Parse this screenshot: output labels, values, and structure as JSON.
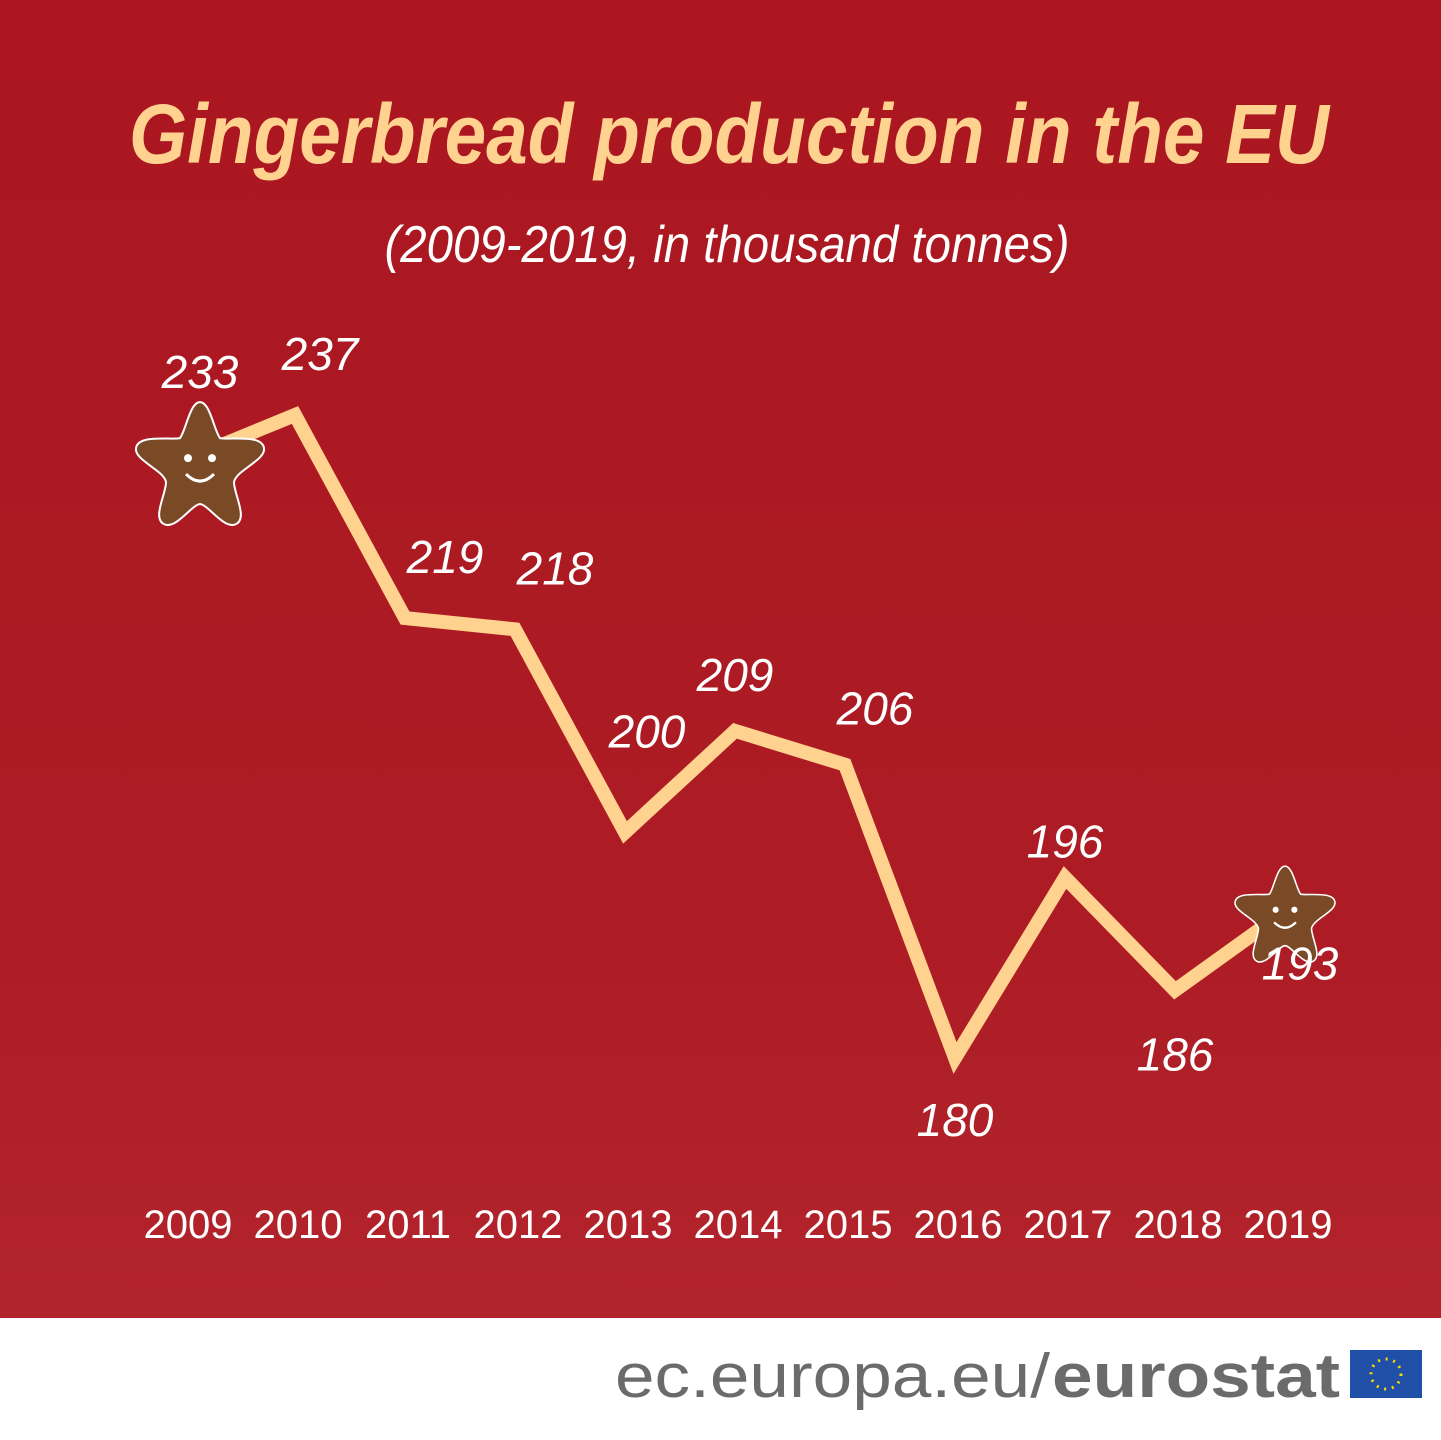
{
  "chart_data": {
    "type": "line",
    "title": "Gingerbread production in the EU",
    "subtitle": "(2009-2019, in thousand tonnes)",
    "categories": [
      "2009",
      "2010",
      "2011",
      "2012",
      "2013",
      "2014",
      "2015",
      "2016",
      "2017",
      "2018",
      "2019"
    ],
    "values": [
      233,
      237,
      219,
      218,
      200,
      209,
      206,
      180,
      196,
      186,
      193
    ],
    "color": "#ffd28f"
  },
  "footer": {
    "site": "ec.europa.eu/",
    "brand": "eurostat"
  }
}
